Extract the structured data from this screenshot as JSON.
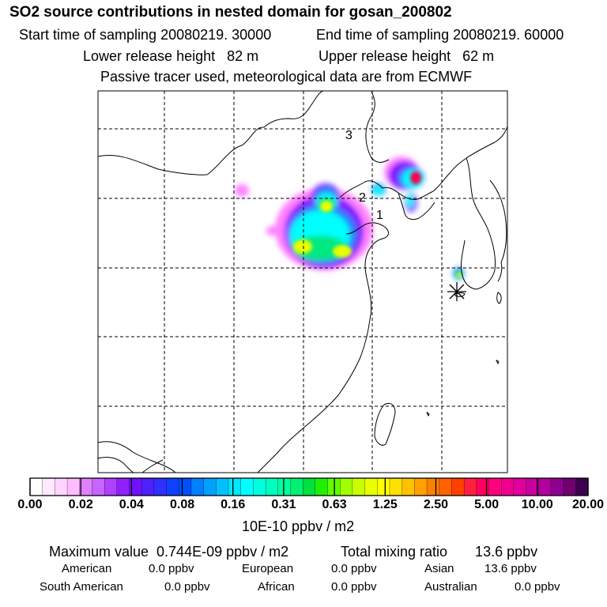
{
  "header": {
    "title": "SO2 source contributions in nested domain for gosan_200802",
    "start_time": "Start time of sampling 20080219. 30000",
    "end_time": "End time of sampling 20080219. 60000",
    "lower_height": "Lower release height   82 m",
    "upper_height": "Upper release height   62 m",
    "note": "Passive tracer used, meteorological data are from ECMWF"
  },
  "map": {
    "labels": [
      "3",
      "2",
      "1"
    ],
    "receptor_icon": "asterisk-receptor-marker",
    "plume_colors": {
      "faint": "#ff80ff",
      "low": "#8000ff",
      "blue": "#2080ff",
      "cyan": "#00ffff",
      "green": "#00e880",
      "yellow": "#e8ff00",
      "peak": "#ff0050"
    }
  },
  "colorbar": {
    "tick_labels": [
      "0.00",
      "0.02",
      "0.04",
      "0.08",
      "0.16",
      "0.31",
      "0.63",
      "1.25",
      "2.50",
      "5.00",
      "10.00",
      "20.00"
    ],
    "colors": [
      "#ffffff",
      "#ffeaff",
      "#ffd4ff",
      "#ffbcff",
      "#e080ff",
      "#c864ff",
      "#b040ff",
      "#9020ff",
      "#7010ff",
      "#5020ff",
      "#3030ff",
      "#1040ff",
      "#0050ff",
      "#0080ff",
      "#00a0ff",
      "#00c0ff",
      "#00e8ff",
      "#00ffff",
      "#00ffe0",
      "#00ffc0",
      "#00ffa0",
      "#00f070",
      "#00e040",
      "#20f000",
      "#60ff00",
      "#a0ff00",
      "#c8ff00",
      "#e8ff00",
      "#ffff00",
      "#ffe000",
      "#ffc000",
      "#ffa000",
      "#ff8000",
      "#ff6000",
      "#ff4000",
      "#ff2040",
      "#ff0060",
      "#ff0080",
      "#f00090",
      "#e000a0",
      "#c800a0",
      "#b000a0",
      "#900090",
      "#700070",
      "#400050"
    ],
    "unit": "10E-10 ppbv / m2"
  },
  "stats": {
    "max_value": "Maximum value  0.744E-09 ppbv / m2",
    "total_mixing": "Total mixing ratio       13.6 ppbv",
    "american_label": "American",
    "american_value": "0.0 ppbv",
    "european_label": "European",
    "european_value": "0.0 ppbv",
    "asian_label": "Asian",
    "asian_value": "13.6 ppbv",
    "south_american_label": "South American",
    "south_american_value": "0.0 ppbv",
    "african_label": "African",
    "african_value": "0.0 ppbv",
    "australian_label": "Australian",
    "australian_value": "0.0 ppbv"
  }
}
